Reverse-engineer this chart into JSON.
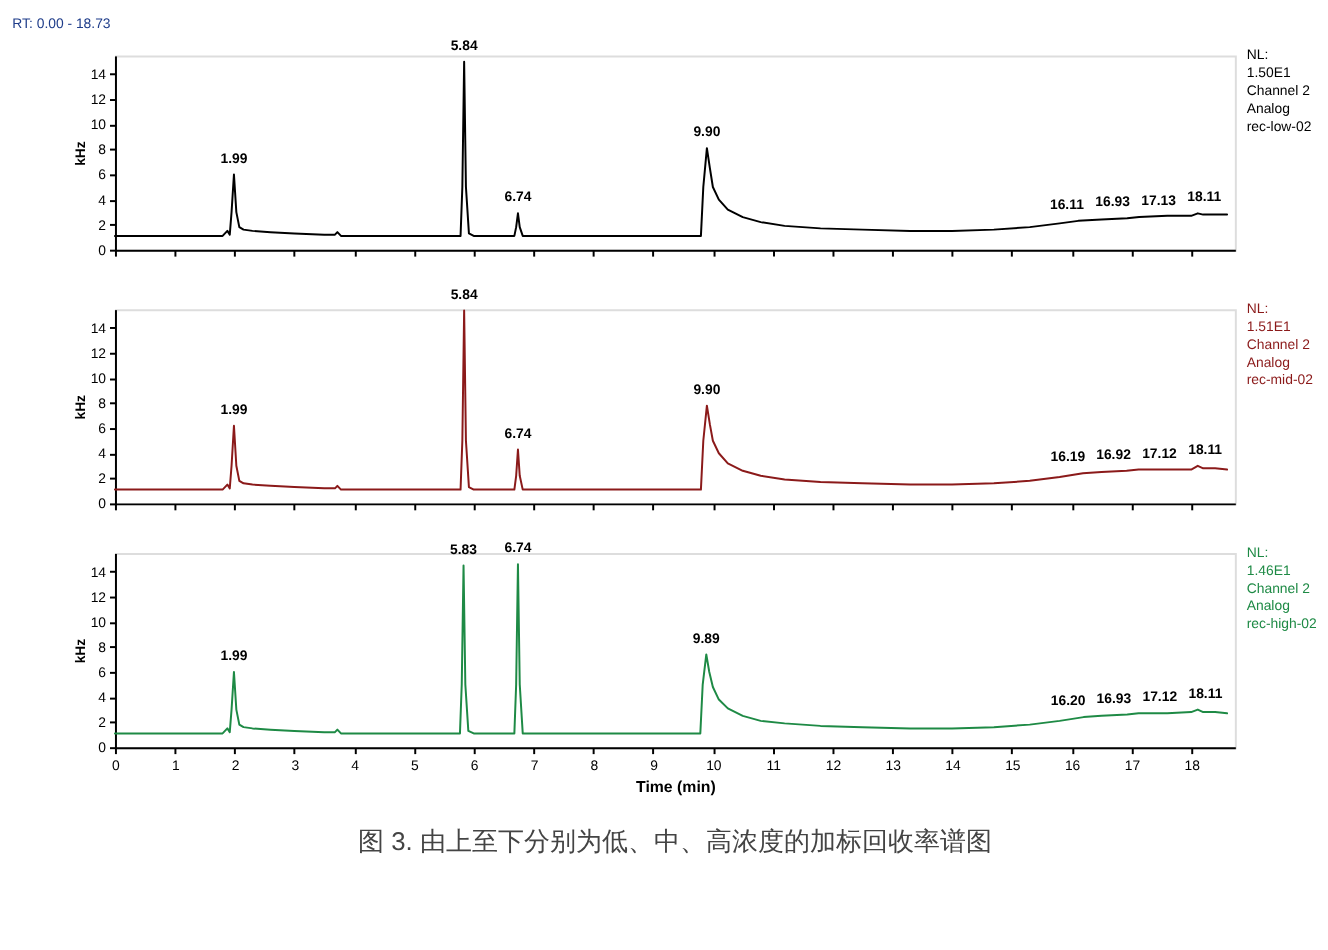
{
  "chart_data": [
    {
      "type": "line",
      "title": "RT: 0.00 - 18.73",
      "ylabel": "kHz",
      "xlim": [
        0,
        18.73
      ],
      "ylim": [
        0,
        15.5
      ],
      "xticks": [
        0,
        1,
        2,
        3,
        4,
        5,
        6,
        7,
        8,
        9,
        10,
        11,
        12,
        13,
        14,
        15,
        16,
        17,
        18
      ],
      "yticks": [
        0,
        2,
        4,
        6,
        8,
        10,
        12,
        14
      ],
      "tick_labels": "y",
      "series": [
        {
          "color": "#000000",
          "x": [
            0,
            1.8,
            1.88,
            1.92,
            1.95,
            1.99,
            2.03,
            2.08,
            2.15,
            2.3,
            2.6,
            3.0,
            3.5,
            3.68,
            3.72,
            3.78,
            4.5,
            5.0,
            5.78,
            5.81,
            5.84,
            5.87,
            5.92,
            6.0,
            6.68,
            6.71,
            6.74,
            6.77,
            6.82,
            7.5,
            8.5,
            9.5,
            9.8,
            9.84,
            9.9,
            9.95,
            10.0,
            10.1,
            10.25,
            10.5,
            10.8,
            11.2,
            11.8,
            12.5,
            13.3,
            14.0,
            14.7,
            15.3,
            15.8,
            16.11,
            16.5,
            16.93,
            17.13,
            17.6,
            18.0,
            18.11,
            18.2,
            18.4,
            18.6
          ],
          "values": [
            1.1,
            1.1,
            1.5,
            1.2,
            3,
            6.0,
            3,
            1.8,
            1.6,
            1.5,
            1.4,
            1.3,
            1.2,
            1.2,
            1.4,
            1.1,
            1.1,
            1.1,
            1.1,
            5,
            15.0,
            5,
            1.3,
            1.1,
            1.1,
            1.8,
            2.9,
            1.8,
            1.1,
            1.1,
            1.1,
            1.1,
            1.1,
            5,
            8.1,
            6.5,
            5.0,
            4,
            3.2,
            2.6,
            2.2,
            1.9,
            1.7,
            1.6,
            1.5,
            1.5,
            1.6,
            1.8,
            2.1,
            2.3,
            2.4,
            2.5,
            2.6,
            2.7,
            2.7,
            2.9,
            2.8,
            2.8,
            2.8
          ]
        }
      ],
      "annotations": [
        "NL:",
        "1.50E1",
        "Channel 2",
        "Analog",
        "rec-low-02",
        {
          "text": "1.99",
          "x": 1.99,
          "y": 6.0
        },
        {
          "text": "5.84",
          "x": 5.84,
          "y": 15.0
        },
        {
          "text": "6.74",
          "x": 6.74,
          "y": 2.9
        },
        {
          "text": "9.90",
          "x": 9.9,
          "y": 8.1
        },
        {
          "text": "16.11",
          "x": 16.11,
          "y": 2.3
        },
        {
          "text": "16.93",
          "x": 16.93,
          "y": 2.5
        },
        {
          "text": "17.13",
          "x": 17.13,
          "y": 2.6
        },
        {
          "text": "18.11",
          "x": 18.11,
          "y": 2.9
        }
      ]
    },
    {
      "type": "line",
      "ylabel": "kHz",
      "xlim": [
        0,
        18.73
      ],
      "ylim": [
        0,
        15.5
      ],
      "xticks": [
        0,
        1,
        2,
        3,
        4,
        5,
        6,
        7,
        8,
        9,
        10,
        11,
        12,
        13,
        14,
        15,
        16,
        17,
        18
      ],
      "yticks": [
        0,
        2,
        4,
        6,
        8,
        10,
        12,
        14
      ],
      "tick_labels": "y",
      "series": [
        {
          "color": "#8b1a1a",
          "x": [
            0,
            1.8,
            1.88,
            1.92,
            1.95,
            1.99,
            2.03,
            2.08,
            2.15,
            2.3,
            2.6,
            3.0,
            3.5,
            3.68,
            3.72,
            3.78,
            4.5,
            5.0,
            5.78,
            5.81,
            5.84,
            5.87,
            5.92,
            6.0,
            6.68,
            6.71,
            6.74,
            6.77,
            6.82,
            7.5,
            8.5,
            9.5,
            9.8,
            9.84,
            9.9,
            9.95,
            10.0,
            10.1,
            10.25,
            10.5,
            10.8,
            11.2,
            11.8,
            12.5,
            13.3,
            14.0,
            14.7,
            15.3,
            15.8,
            16.19,
            16.5,
            16.92,
            17.12,
            17.6,
            18.0,
            18.11,
            18.2,
            18.4,
            18.6
          ],
          "values": [
            1.1,
            1.1,
            1.5,
            1.2,
            3,
            6.2,
            3,
            1.8,
            1.6,
            1.5,
            1.4,
            1.3,
            1.2,
            1.2,
            1.4,
            1.1,
            1.1,
            1.1,
            1.1,
            5,
            15.4,
            5,
            1.3,
            1.1,
            1.1,
            2.2,
            4.3,
            2.2,
            1.1,
            1.1,
            1.1,
            1.1,
            1.1,
            5,
            7.8,
            6.3,
            5.0,
            4,
            3.2,
            2.6,
            2.2,
            1.9,
            1.7,
            1.6,
            1.5,
            1.5,
            1.6,
            1.8,
            2.1,
            2.4,
            2.5,
            2.6,
            2.7,
            2.7,
            2.7,
            3.0,
            2.8,
            2.8,
            2.7
          ]
        }
      ],
      "annotations": [
        "NL:",
        "1.51E1",
        "Channel 2",
        "Analog",
        "rec-mid-02",
        {
          "text": "1.99",
          "x": 1.99,
          "y": 6.2
        },
        {
          "text": "5.84",
          "x": 5.84,
          "y": 15.4
        },
        {
          "text": "6.74",
          "x": 6.74,
          "y": 4.3
        },
        {
          "text": "9.90",
          "x": 9.9,
          "y": 7.8
        },
        {
          "text": "16.19",
          "x": 16.19,
          "y": 2.4
        },
        {
          "text": "16.92",
          "x": 16.92,
          "y": 2.6
        },
        {
          "text": "17.12",
          "x": 17.12,
          "y": 2.7
        },
        {
          "text": "18.11",
          "x": 18.11,
          "y": 3.0
        }
      ]
    },
    {
      "type": "line",
      "title": "图 3. 由上至下分别为低、中、高浓度的加标回收率谱图",
      "xlabel": "Time (min)",
      "ylabel": "kHz",
      "xlim": [
        0,
        18.73
      ],
      "ylim": [
        0,
        15.5
      ],
      "xticks": [
        0,
        1,
        2,
        3,
        4,
        5,
        6,
        7,
        8,
        9,
        10,
        11,
        12,
        13,
        14,
        15,
        16,
        17,
        18
      ],
      "yticks": [
        0,
        2,
        4,
        6,
        8,
        10,
        12,
        14
      ],
      "series": [
        {
          "color": "#1e8a45",
          "x": [
            0,
            1.8,
            1.88,
            1.92,
            1.95,
            1.99,
            2.03,
            2.08,
            2.15,
            2.3,
            2.6,
            3.0,
            3.5,
            3.68,
            3.72,
            3.78,
            4.5,
            5.0,
            5.77,
            5.8,
            5.83,
            5.86,
            5.91,
            6.0,
            6.68,
            6.71,
            6.74,
            6.77,
            6.82,
            7.5,
            8.5,
            9.5,
            9.79,
            9.83,
            9.89,
            9.94,
            10.0,
            10.1,
            10.25,
            10.5,
            10.8,
            11.2,
            11.8,
            12.5,
            13.3,
            14.0,
            14.7,
            15.3,
            15.8,
            16.2,
            16.5,
            16.93,
            17.12,
            17.6,
            18.0,
            18.11,
            18.2,
            18.4,
            18.6
          ],
          "values": [
            1.1,
            1.1,
            1.5,
            1.2,
            3,
            6.0,
            3,
            1.8,
            1.6,
            1.5,
            1.4,
            1.3,
            1.2,
            1.2,
            1.4,
            1.1,
            1.1,
            1.1,
            1.1,
            5,
            14.5,
            5,
            1.3,
            1.1,
            1.1,
            5,
            14.6,
            5,
            1.1,
            1.1,
            1.1,
            1.1,
            1.1,
            5,
            7.4,
            6.0,
            4.8,
            3.8,
            3.1,
            2.5,
            2.1,
            1.9,
            1.7,
            1.6,
            1.5,
            1.5,
            1.6,
            1.8,
            2.1,
            2.4,
            2.5,
            2.6,
            2.7,
            2.7,
            2.8,
            3.0,
            2.8,
            2.8,
            2.7
          ]
        }
      ],
      "annotations": [
        "NL:",
        "1.46E1",
        "Channel 2",
        "Analog",
        "rec-high-02",
        {
          "text": "1.99",
          "x": 1.99,
          "y": 6.0
        },
        {
          "text": "5.83",
          "x": 5.83,
          "y": 14.5
        },
        {
          "text": "6.74",
          "x": 6.74,
          "y": 14.6
        },
        {
          "text": "9.89",
          "x": 9.89,
          "y": 7.4
        },
        {
          "text": "16.20",
          "x": 16.2,
          "y": 2.4
        },
        {
          "text": "16.93",
          "x": 16.93,
          "y": 2.6
        },
        {
          "text": "17.12",
          "x": 17.12,
          "y": 2.7
        },
        {
          "text": "18.11",
          "x": 18.11,
          "y": 3.0
        }
      ]
    }
  ]
}
